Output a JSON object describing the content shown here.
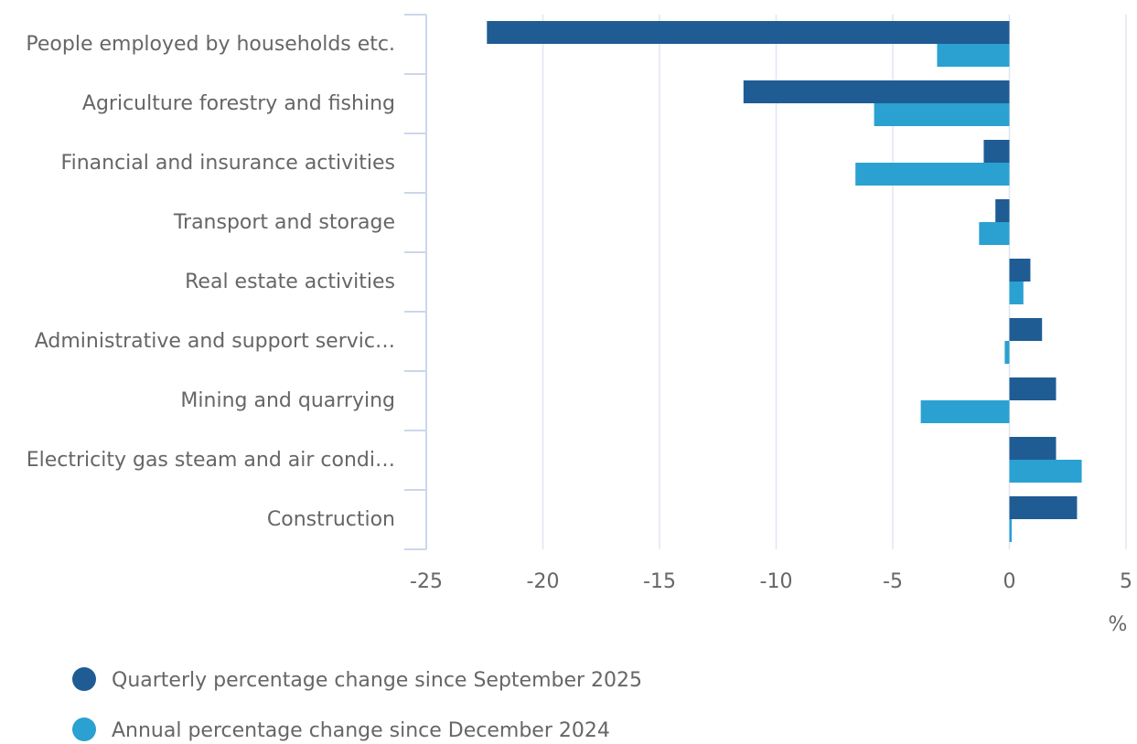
{
  "chart_data": {
    "type": "bar",
    "orientation": "horizontal",
    "categories": [
      "People employed by households etc.",
      "Agriculture forestry and fishing",
      "Financial and insurance activities",
      "Transport and storage",
      "Real estate activities",
      "Administrative and support servic…",
      "Mining and quarrying",
      "Electricity gas steam and air condi…",
      "Construction"
    ],
    "series": [
      {
        "name": "Quarterly percentage change since September 2025",
        "color": "#1f5c94",
        "values": [
          -22.4,
          -11.4,
          -1.1,
          -0.6,
          0.9,
          1.4,
          2.0,
          2.0,
          2.9
        ]
      },
      {
        "name": "Annual percentage change since December 2024",
        "color": "#2aa1d1",
        "values": [
          -3.1,
          -5.8,
          -6.6,
          -1.3,
          0.6,
          -0.2,
          -3.8,
          3.1,
          0.1
        ]
      }
    ],
    "xlabel": "%",
    "xlim": [
      -25,
      5
    ],
    "xticks": [
      -25,
      -20,
      -15,
      -10,
      -5,
      0,
      5
    ],
    "grid": true
  }
}
